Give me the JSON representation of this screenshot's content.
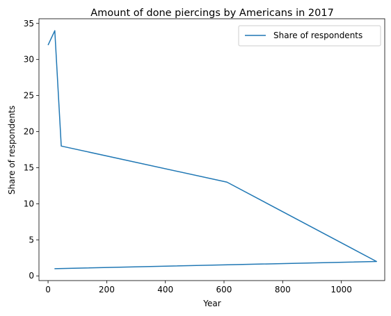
{
  "chart_data": {
    "type": "line",
    "title": "Amount of done piercings by Americans in 2017",
    "xlabel": "Year",
    "ylabel": "Share of respondents",
    "xlim": [
      -31,
      1148
    ],
    "ylim": [
      -0.65,
      35.65
    ],
    "xticks": [
      0,
      200,
      400,
      600,
      800,
      1000
    ],
    "yticks": [
      0,
      5,
      10,
      15,
      20,
      25,
      30,
      35
    ],
    "grid": false,
    "legend": "top-right",
    "color": "#1f77b4",
    "series": [
      {
        "name": "Share of respondents",
        "x": [
          0,
          23,
          45,
          610,
          1120,
          22
        ],
        "y": [
          32,
          34,
          18,
          13,
          2,
          1
        ]
      }
    ]
  }
}
